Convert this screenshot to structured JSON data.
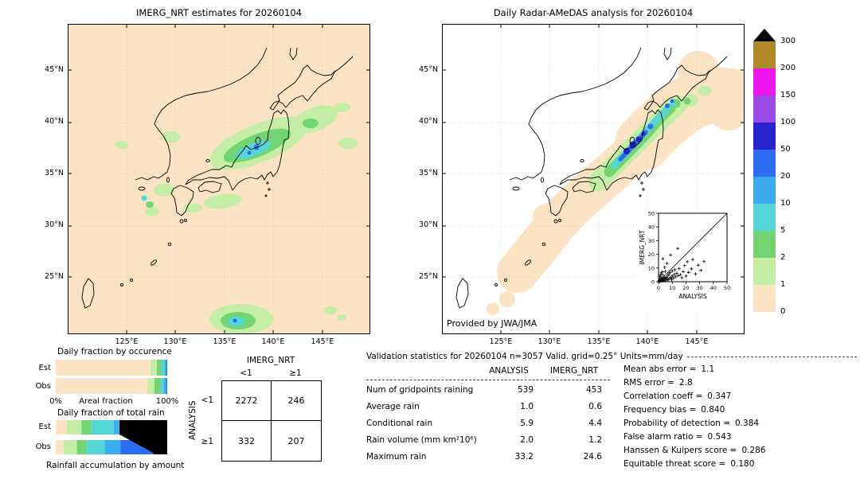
{
  "palette": {
    "p0": "#fbe3c3",
    "p1": "#c4eda6",
    "p2": "#72d572",
    "p5": "#55d6d6",
    "p10": "#3cabf2",
    "p20": "#2b6cf0",
    "p50": "#2424cc",
    "p100": "#9b4ae6",
    "p150": "#ee14ee",
    "p200": "#b08828",
    "coast": "#000000"
  },
  "chart_data": [
    {
      "id": "map_left",
      "type": "heatmap",
      "title": "IMERG_NRT estimates for 20260104",
      "lat_ticks": [
        "45°N",
        "40°N",
        "35°N",
        "30°N",
        "25°N"
      ],
      "lon_ticks": [
        "125°E",
        "130°E",
        "135°E",
        "140°E",
        "145°E"
      ],
      "units": "mm/day"
    },
    {
      "id": "map_right",
      "type": "heatmap",
      "title": "Daily Radar-AMeDAS analysis for 20260104",
      "credit": "Provided by JWA/JMA",
      "lat_ticks": [
        "45°N",
        "40°N",
        "35°N",
        "30°N",
        "25°N"
      ],
      "lon_ticks": [
        "125°E",
        "130°E",
        "135°E",
        "140°E",
        "145°E"
      ],
      "units": "mm/day"
    },
    {
      "id": "colorbar",
      "type": "legend",
      "labels": [
        "300",
        "200",
        "150",
        "100",
        "50",
        "20",
        "10",
        "5",
        "2",
        "1",
        "0"
      ],
      "colors": [
        "#b08828",
        "#ee14ee",
        "#9b4ae6",
        "#2424cc",
        "#2b6cf0",
        "#3cabf2",
        "#55d6d6",
        "#72d572",
        "#c4eda6",
        "#fbe3c3"
      ],
      "arrow_color": "#000000"
    },
    {
      "id": "occurrence_bars",
      "type": "bar",
      "title": "Daily fraction by occurence",
      "axis_left": "0%",
      "axis_center": "Areal fraction",
      "axis_right": "100%",
      "rows": [
        {
          "label": "Est",
          "segments": [
            {
              "color": "#fbe3c3",
              "pct": 85.2
            },
            {
              "color": "#c4eda6",
              "pct": 5.4
            },
            {
              "color": "#72d572",
              "pct": 4.4
            },
            {
              "color": "#55d6d6",
              "pct": 2.6
            },
            {
              "color": "#3cabf2",
              "pct": 1.5
            },
            {
              "color": "#2b6cf0",
              "pct": 0.9
            }
          ]
        },
        {
          "label": "Obs",
          "segments": [
            {
              "color": "#fbe3c3",
              "pct": 82.4
            },
            {
              "color": "#c4eda6",
              "pct": 6.4
            },
            {
              "color": "#72d572",
              "pct": 5.2
            },
            {
              "color": "#55d6d6",
              "pct": 3.2
            },
            {
              "color": "#3cabf2",
              "pct": 1.8
            },
            {
              "color": "#2b6cf0",
              "pct": 1.0
            }
          ]
        }
      ]
    },
    {
      "id": "totalrain_bars",
      "type": "bar",
      "title": "Daily fraction of total rain",
      "footer": "Rainfall accumulation by amount",
      "wedge_color": "#000000",
      "rows": [
        {
          "label": "Est",
          "segments": [
            {
              "color": "#fbe3c3",
              "pct": 10
            },
            {
              "color": "#c4eda6",
              "pct": 13
            },
            {
              "color": "#72d572",
              "pct": 9
            },
            {
              "color": "#55d6d6",
              "pct": 20
            },
            {
              "color": "#3cabf2",
              "pct": 5
            }
          ]
        },
        {
          "label": "Obs",
          "segments": [
            {
              "color": "#fbe3c3",
              "pct": 7
            },
            {
              "color": "#c4eda6",
              "pct": 12
            },
            {
              "color": "#72d572",
              "pct": 9
            },
            {
              "color": "#55d6d6",
              "pct": 16
            },
            {
              "color": "#3cabf2",
              "pct": 14
            },
            {
              "color": "#2b6cf0",
              "pct": 29
            },
            {
              "color": "#2424cc",
              "pct": 13
            }
          ]
        }
      ]
    },
    {
      "id": "contingency",
      "type": "table",
      "header": "IMERG_NRT",
      "row_axis": "ANALYSIS",
      "col_labels": [
        "<1",
        "≥1"
      ],
      "row_labels": [
        "<1",
        "≥1"
      ],
      "values": [
        [
          "2272",
          "246"
        ],
        [
          "332",
          "207"
        ]
      ]
    },
    {
      "id": "scatter_inset",
      "type": "scatter",
      "xlabel": "ANALYSIS",
      "ylabel": "IMERG_NRT",
      "xlim": [
        0,
        50
      ],
      "ylim": [
        0,
        50
      ],
      "diagonal": true,
      "marker": "+",
      "x_ticks": [
        "0",
        "10",
        "20",
        "30",
        "40",
        "50"
      ],
      "y_ticks": [
        "0",
        "10",
        "20",
        "30",
        "40",
        "50"
      ],
      "points": [
        [
          0.3,
          0.2
        ],
        [
          0.5,
          0.8
        ],
        [
          0.6,
          0.3
        ],
        [
          0.9,
          1.5
        ],
        [
          1,
          0.4
        ],
        [
          1.2,
          2.2
        ],
        [
          1.4,
          0.7
        ],
        [
          1.7,
          1.1
        ],
        [
          2,
          0.5
        ],
        [
          2,
          3
        ],
        [
          2.3,
          1.6
        ],
        [
          2.6,
          0.9
        ],
        [
          3,
          2.2
        ],
        [
          3,
          5
        ],
        [
          3.4,
          1.2
        ],
        [
          3.8,
          2.8
        ],
        [
          4,
          0.6
        ],
        [
          4.3,
          3.6
        ],
        [
          4.7,
          1.9
        ],
        [
          5,
          2.7
        ],
        [
          5,
          7.5
        ],
        [
          5.5,
          1.1
        ],
        [
          6,
          3.4
        ],
        [
          6.4,
          2
        ],
        [
          7,
          4.6
        ],
        [
          7,
          1.3
        ],
        [
          7.6,
          5.8
        ],
        [
          8,
          2.4
        ],
        [
          8.5,
          6.7
        ],
        [
          9,
          3.1
        ],
        [
          9.6,
          1.6
        ],
        [
          10,
          4.2
        ],
        [
          10,
          7.9
        ],
        [
          11,
          2.7
        ],
        [
          11.5,
          5.3
        ],
        [
          12,
          8.8
        ],
        [
          12.6,
          3.6
        ],
        [
          13.3,
          6.1
        ],
        [
          14,
          24.3
        ],
        [
          14.5,
          4.4
        ],
        [
          15,
          9.6
        ],
        [
          16,
          5.2
        ],
        [
          17,
          2.9
        ],
        [
          18,
          7.3
        ],
        [
          19,
          11.8
        ],
        [
          20,
          4.1
        ],
        [
          21,
          14.6
        ],
        [
          22,
          6.8
        ],
        [
          24,
          9.4
        ],
        [
          25,
          16.2
        ],
        [
          27,
          5.7
        ],
        [
          29,
          12.1
        ],
        [
          31,
          8.3
        ],
        [
          33.2,
          14.8
        ],
        [
          1.5,
          4.9
        ],
        [
          2.8,
          7.2
        ],
        [
          4.5,
          10.5
        ],
        [
          6.2,
          13.4
        ],
        [
          3.2,
          16.8
        ],
        [
          8.8,
          19.5
        ],
        [
          0.8,
          3.8
        ],
        [
          1.9,
          6.4
        ]
      ]
    },
    {
      "id": "stats",
      "type": "table",
      "title": "Validation statistics for 20260104  n=3057 Valid. grid=0.25° Units=mm/day",
      "col_headers": [
        "ANALYSIS",
        "IMERG_NRT"
      ],
      "rows": [
        {
          "label": "Num of gridpoints raining",
          "analysis": "539",
          "imerg": "453"
        },
        {
          "label": "Average rain",
          "analysis": "1.0",
          "imerg": "0.6"
        },
        {
          "label": "Conditional rain",
          "analysis": "5.9",
          "imerg": "4.4"
        },
        {
          "label": "Rain volume (mm km²10⁶)",
          "analysis": "2.0",
          "imerg": "1.2"
        },
        {
          "label": "Maximum rain",
          "analysis": "33.2",
          "imerg": "24.6"
        }
      ],
      "metrics": [
        {
          "label": "Mean abs error =",
          "value": "1.1"
        },
        {
          "label": "RMS error =",
          "value": "2.8"
        },
        {
          "label": "Correlation coeff =",
          "value": "0.347"
        },
        {
          "label": "Frequency bias =",
          "value": "0.840"
        },
        {
          "label": "Probability of detection =",
          "value": "0.384"
        },
        {
          "label": "False alarm ratio =",
          "value": "0.543"
        },
        {
          "label": "Hanssen & Kuipers score =",
          "value": "0.286"
        },
        {
          "label": "Equitable threat score =",
          "value": "0.180"
        }
      ]
    }
  ]
}
